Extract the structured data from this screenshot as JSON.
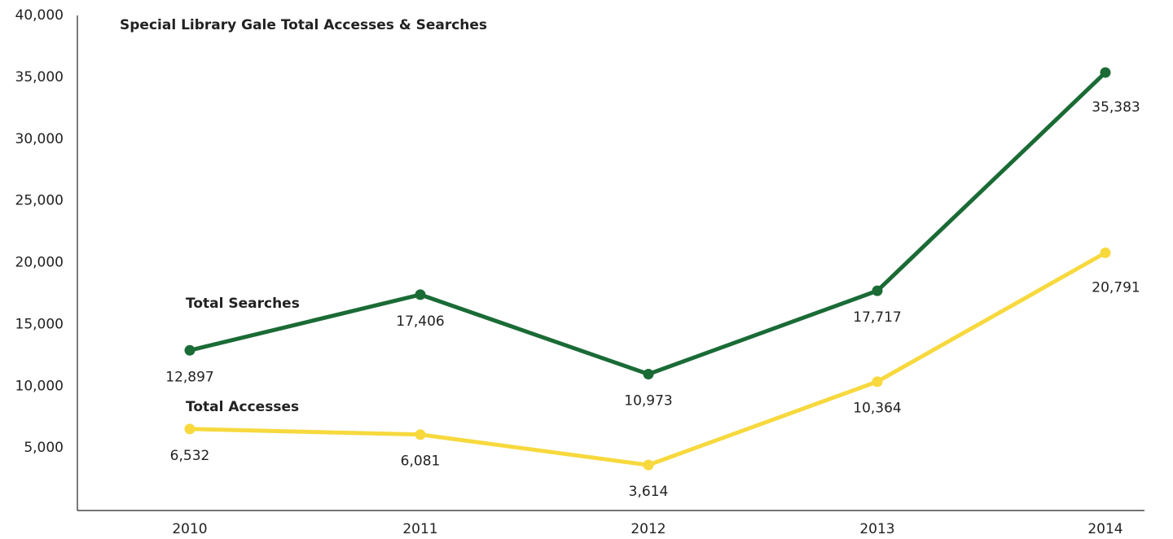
{
  "chart_data": {
    "type": "line",
    "title": "Special Library Gale Total Accesses & Searches",
    "categories": [
      "2010",
      "2011",
      "2012",
      "2013",
      "2014"
    ],
    "series": [
      {
        "name": "Total Searches",
        "color": "#1a6b35",
        "values": [
          12897,
          17406,
          10973,
          17717,
          35383
        ],
        "value_labels": [
          "12,897",
          "17,406",
          "10,973",
          "17,717",
          "35,383"
        ]
      },
      {
        "name": "Total Accesses",
        "color": "#f7d93e",
        "values": [
          6532,
          6081,
          3614,
          10364,
          20791
        ],
        "value_labels": [
          "6,532",
          "6,081",
          "3,614",
          "10,364",
          "20,791"
        ]
      }
    ],
    "ylim": [
      0,
      40000
    ],
    "yticks": [
      {
        "value": 5000,
        "label": "5,000"
      },
      {
        "value": 10000,
        "label": "10,000"
      },
      {
        "value": 15000,
        "label": "15,000"
      },
      {
        "value": 20000,
        "label": "20,000"
      },
      {
        "value": 25000,
        "label": "25,000"
      },
      {
        "value": 30000,
        "label": "30,000"
      },
      {
        "value": 35000,
        "label": "35,000"
      },
      {
        "value": 40000,
        "label": "40,000"
      }
    ],
    "grid": false
  }
}
